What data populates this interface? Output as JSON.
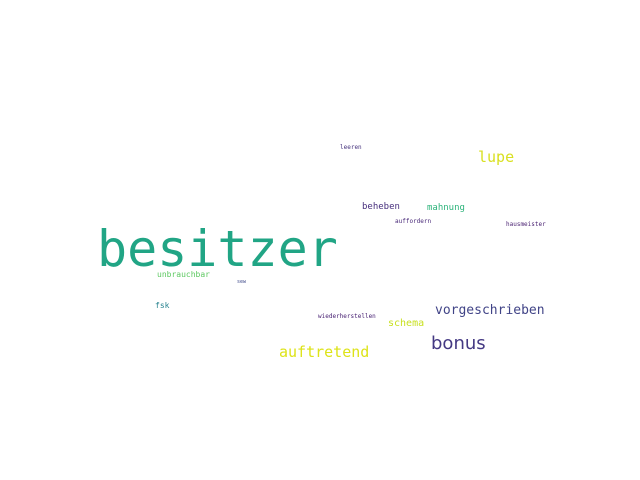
{
  "wordcloud": {
    "words": {
      "besitzer": {
        "text": "besitzer",
        "color": "#21a585"
      },
      "lupe": {
        "text": "lupe",
        "color": "#d9e021"
      },
      "leeren": {
        "text": "leeren",
        "color": "#46337e"
      },
      "beheben": {
        "text": "beheben",
        "color": "#472f7d"
      },
      "mahnung": {
        "text": "mahnung",
        "color": "#2fb47c"
      },
      "auffordern": {
        "text": "auffordern",
        "color": "#482878"
      },
      "hausmeister": {
        "text": "hausmeister",
        "color": "#481f70"
      },
      "unbrauchbar": {
        "text": "unbrauchbar",
        "color": "#5ec962"
      },
      "sew": {
        "text": "sew",
        "color": "#3e4989"
      },
      "fsk": {
        "text": "fsk",
        "color": "#26828e"
      },
      "wiederherstellen": {
        "text": "wiederherstellen",
        "color": "#482173"
      },
      "vorgeschrieben": {
        "text": "vorgeschrieben",
        "color": "#414487"
      },
      "schema": {
        "text": "schema",
        "color": "#c8e020"
      },
      "bonus": {
        "text": "bonus",
        "color": "#443983"
      },
      "auftretend": {
        "text": "auftretend",
        "color": "#dde318"
      }
    }
  }
}
